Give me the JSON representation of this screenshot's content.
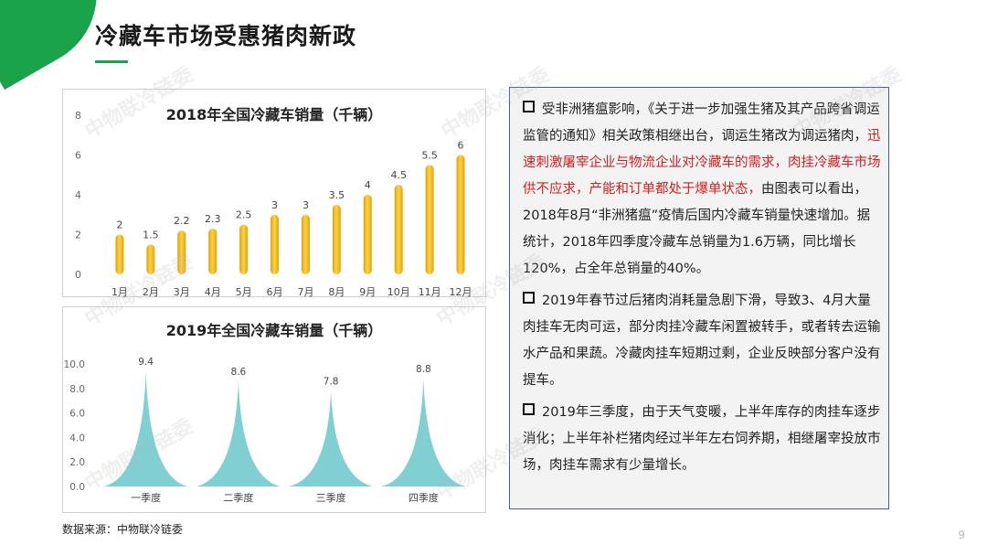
{
  "title": "冷藏车市场受惠猪肉新政",
  "chart_data": [
    {
      "type": "bar",
      "title": "2018年全国冷藏车销量（千辆）",
      "categories": [
        "1月",
        "2月",
        "3月",
        "4月",
        "5月",
        "6月",
        "7月",
        "8月",
        "9月",
        "10月",
        "11月",
        "12月"
      ],
      "values": [
        2,
        1.5,
        2.2,
        2.3,
        2.5,
        3,
        3,
        3.5,
        4,
        4.5,
        5.5,
        6
      ],
      "value_labels": [
        "2",
        "1.5",
        "2.2",
        "2.3",
        "2.5",
        "3",
        "3",
        "3.5",
        "4",
        "4.5",
        "5.5",
        "6"
      ],
      "ylim": [
        0,
        8
      ],
      "yticks": [
        "0",
        "2",
        "4",
        "6",
        "8"
      ],
      "bar_color": "#f5b800",
      "grid": false
    },
    {
      "type": "bar",
      "title": "2019年全国冷藏车销量（千辆）",
      "categories": [
        "一季度",
        "二季度",
        "三季度",
        "四季度"
      ],
      "values": [
        9.4,
        8.6,
        7.8,
        8.8
      ],
      "value_labels": [
        "9.4",
        "8.6",
        "7.8",
        "8.8"
      ],
      "ylim": [
        0,
        10
      ],
      "yticks": [
        "0.0",
        "2.0",
        "4.0",
        "6.0",
        "8.0",
        "10.0"
      ],
      "bar_color": "#7fcfd3",
      "bar_shape": "spike",
      "grid": false
    }
  ],
  "text_panel": {
    "p1_before": "受非洲猪瘟影响，《关于进一步加强生猪及其产品跨省调运监管的通知》相关政策相继出台，调运生猪改为调运猪肉，",
    "p1_red": "迅速刺激屠宰企业与物流企业对冷藏车的需求，肉挂冷藏车市场供不应求，产能和订单都处于爆单状态，",
    "p1_after": "由图表可以看出，2018年8月“非洲猪瘟”疫情后国内冷藏车销量快速增加。据统计，2018年四季度冷藏车总销量为1.6万辆，同比增长120%，占全年总销量的40%。",
    "p2": "2019年春节过后猪肉消耗量急剧下滑，导致3、4月大量肉挂车无肉可运，部分肉挂冷藏车闲置被转手，或者转去运输水产品和果蔬。冷藏肉挂车短期过剩，企业反映部分客户没有提车。",
    "p3": "2019年三季度，由于天气变暖，上半年库存的肉挂车逐步消化；上半年补栏猪肉经过半年左右饲养期，相继屠宰投放市场，肉挂车需求有少量增长。"
  },
  "source": "数据来源：中物联冷链委",
  "watermark": "中物联冷链委",
  "page_number": "9"
}
